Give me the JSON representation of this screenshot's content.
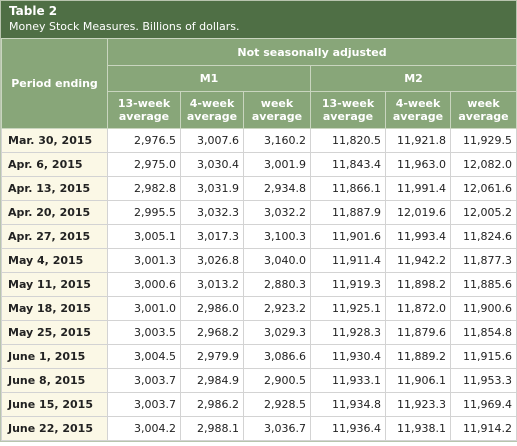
{
  "header": {
    "title": "Table 2",
    "subtitle": "Money Stock Measures. Billions of dollars."
  },
  "table": {
    "period_header": "Period ending",
    "group_header": "Not seasonally adjusted",
    "groups": [
      "M1",
      "M2"
    ],
    "columns": [
      "13-week average",
      "4-week average",
      "week average",
      "13-week average",
      "4-week average",
      "week average"
    ],
    "rows": [
      [
        "Mar. 30, 2015",
        "2,976.5",
        "3,007.6",
        "3,160.2",
        "11,820.5",
        "11,921.8",
        "11,929.5"
      ],
      [
        "Apr. 6, 2015",
        "2,975.0",
        "3,030.4",
        "3,001.9",
        "11,843.4",
        "11,963.0",
        "12,082.0"
      ],
      [
        "Apr. 13, 2015",
        "2,982.8",
        "3,031.9",
        "2,934.8",
        "11,866.1",
        "11,991.4",
        "12,061.6"
      ],
      [
        "Apr. 20, 2015",
        "2,995.5",
        "3,032.3",
        "3,032.2",
        "11,887.9",
        "12,019.6",
        "12,005.2"
      ],
      [
        "Apr. 27, 2015",
        "3,005.1",
        "3,017.3",
        "3,100.3",
        "11,901.6",
        "11,993.4",
        "11,824.6"
      ],
      [
        "May 4, 2015",
        "3,001.3",
        "3,026.8",
        "3,040.0",
        "11,911.4",
        "11,942.2",
        "11,877.3"
      ],
      [
        "May 11, 2015",
        "3,000.6",
        "3,013.2",
        "2,880.3",
        "11,919.3",
        "11,898.2",
        "11,885.6"
      ],
      [
        "May 18, 2015",
        "3,001.0",
        "2,986.0",
        "2,923.2",
        "11,925.1",
        "11,872.0",
        "11,900.6"
      ],
      [
        "May 25, 2015",
        "3,003.5",
        "2,968.2",
        "3,029.3",
        "11,928.3",
        "11,879.6",
        "11,854.8"
      ],
      [
        "June 1, 2015",
        "3,004.5",
        "2,979.9",
        "3,086.6",
        "11,930.4",
        "11,889.2",
        "11,915.6"
      ],
      [
        "June 8, 2015",
        "3,003.7",
        "2,984.9",
        "2,900.5",
        "11,933.1",
        "11,906.1",
        "11,953.3"
      ],
      [
        "June 15, 2015",
        "3,003.7",
        "2,986.2",
        "2,928.5",
        "11,934.8",
        "11,923.3",
        "11,969.4"
      ],
      [
        "June 22, 2015",
        "3,004.2",
        "2,988.1",
        "3,036.7",
        "11,936.4",
        "11,938.1",
        "11,914.2"
      ]
    ]
  }
}
